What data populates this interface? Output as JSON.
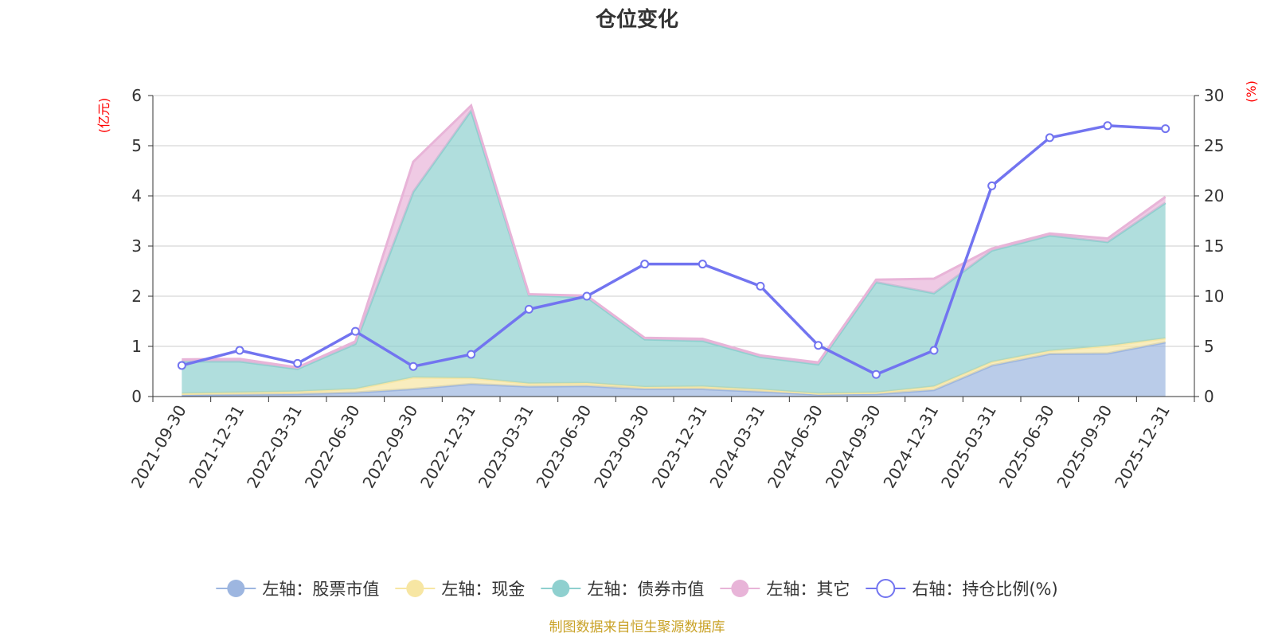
{
  "chart_data": {
    "type": "area",
    "title": "仓位变化",
    "source_note": "制图数据来自恒生聚源数据库",
    "x": [
      "2021-09-30",
      "2021-12-31",
      "2022-03-31",
      "2022-06-30",
      "2022-09-30",
      "2022-12-31",
      "2023-03-31",
      "2023-06-30",
      "2023-09-30",
      "2023-12-31",
      "2024-03-31",
      "2024-06-30",
      "2024-09-30",
      "2024-12-31",
      "2025-03-31",
      "2025-06-30",
      "2025-09-30",
      "2025-12-31"
    ],
    "left_axis": {
      "unit": "(亿元)",
      "ylim": [
        0,
        6
      ],
      "ticks": [
        "0",
        "1",
        "2",
        "3",
        "4",
        "5",
        "6"
      ]
    },
    "right_axis": {
      "unit": "(%)",
      "ylim": [
        0,
        30
      ],
      "ticks": [
        "0",
        "5",
        "10",
        "15",
        "20",
        "25",
        "30"
      ]
    },
    "stacked_series": [
      {
        "name": "左轴：股票市值",
        "color": "#9db6e0",
        "values": [
          0.03,
          0.04,
          0.05,
          0.08,
          0.15,
          0.25,
          0.2,
          0.21,
          0.15,
          0.15,
          0.1,
          0.04,
          0.05,
          0.13,
          0.62,
          0.85,
          0.86,
          1.08
        ]
      },
      {
        "name": "左轴：现金",
        "color": "#f7e6a3",
        "values": [
          0.03,
          0.04,
          0.05,
          0.07,
          0.23,
          0.12,
          0.06,
          0.06,
          0.04,
          0.05,
          0.04,
          0.02,
          0.03,
          0.07,
          0.07,
          0.06,
          0.15,
          0.08
        ]
      },
      {
        "name": "左轴：债券市值",
        "color": "#8fd0cf",
        "values": [
          0.64,
          0.62,
          0.45,
          0.9,
          3.7,
          5.33,
          1.76,
          1.71,
          0.95,
          0.91,
          0.65,
          0.58,
          2.2,
          1.86,
          2.22,
          2.3,
          2.07,
          2.7
        ]
      },
      {
        "name": "左轴：其它",
        "color": "#e8b4d8",
        "values": [
          0.04,
          0.05,
          0.03,
          0.05,
          0.6,
          0.1,
          0.02,
          0.03,
          0.03,
          0.04,
          0.03,
          0.04,
          0.05,
          0.29,
          0.04,
          0.04,
          0.07,
          0.12
        ]
      }
    ],
    "line_series": {
      "name": "右轴：持仓比例(%)",
      "color": "#7274f0",
      "values": [
        3.1,
        4.6,
        3.3,
        6.5,
        3.0,
        4.2,
        8.7,
        10.0,
        13.2,
        13.2,
        11.0,
        5.1,
        2.2,
        4.6,
        21.0,
        25.8,
        27.0,
        26.7
      ]
    },
    "grid": true,
    "legend_position": "bottom"
  }
}
